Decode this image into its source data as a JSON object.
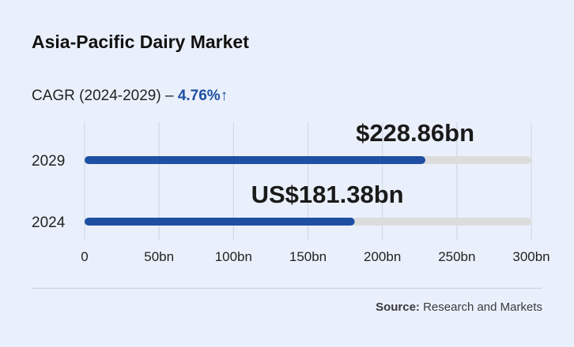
{
  "title": "Asia-Pacific Dairy Market",
  "cagr": {
    "label": "CAGR (2024-2029) –",
    "value": "4.76%",
    "arrow": "↑"
  },
  "source": {
    "label": "Source:",
    "text": "Research and Markets"
  },
  "colors": {
    "accent": "#1e4fa3",
    "track": "#dcdcdc",
    "grid": "#cfd5e0",
    "background": "#eaf0fb"
  },
  "chart_data": {
    "type": "bar",
    "orientation": "horizontal",
    "categories": [
      "2029",
      "2024"
    ],
    "values": [
      228.86,
      181.38
    ],
    "value_labels": [
      "$228.86bn",
      "US$181.38bn"
    ],
    "xlim": [
      0,
      300
    ],
    "xticks": [
      0,
      50,
      100,
      150,
      200,
      250,
      300
    ],
    "xtick_labels": [
      "0",
      "50bn",
      "100bn",
      "150bn",
      "200bn",
      "250bn",
      "300bn"
    ],
    "grid": true
  }
}
